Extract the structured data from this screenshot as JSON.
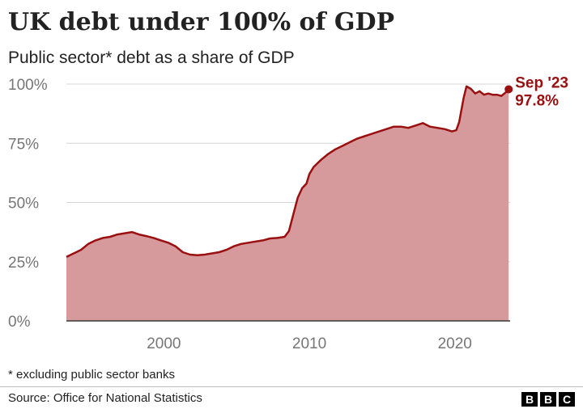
{
  "chart_data": {
    "type": "area",
    "title": "UK debt under 100% of GDP",
    "subtitle": "Public sector* debt as a share of GDP",
    "y_ticks": [
      "0%",
      "25%",
      "50%",
      "75%",
      "100%"
    ],
    "x_ticks": [
      "2000",
      "2010",
      "2020"
    ],
    "ylim": [
      0,
      100
    ],
    "xlim": [
      1993.3,
      2023.8
    ],
    "grid": true,
    "series": [
      {
        "x": [
          1993.3,
          1993.8,
          1994.3,
          1994.8,
          1995.3,
          1995.8,
          1996.3,
          1996.8,
          1997.3,
          1997.8,
          1998.3,
          1998.8,
          1999.3,
          1999.8,
          2000.3,
          2000.8,
          2001.3,
          2001.8,
          2002.3,
          2002.8,
          2003.3,
          2003.8,
          2004.3,
          2004.8,
          2005.3,
          2005.8,
          2006.3,
          2006.8,
          2007.3,
          2007.8,
          2008.3,
          2008.6,
          2008.9,
          2009.2,
          2009.5,
          2009.8,
          2010.0,
          2010.3,
          2010.8,
          2011.3,
          2011.8,
          2012.3,
          2012.8,
          2013.3,
          2013.8,
          2014.3,
          2014.8,
          2015.3,
          2015.8,
          2016.3,
          2016.8,
          2017.3,
          2017.8,
          2018.3,
          2018.8,
          2019.3,
          2019.8,
          2020.1,
          2020.3,
          2020.6,
          2020.8,
          2021.1,
          2021.4,
          2021.7,
          2022.0,
          2022.3,
          2022.6,
          2022.9,
          2023.2,
          2023.5,
          2023.7
        ],
        "y": [
          27,
          28.5,
          30,
          32.5,
          34,
          35,
          35.5,
          36.5,
          37,
          37.5,
          36.5,
          35.8,
          35,
          34,
          33,
          31.5,
          29,
          28,
          27.7,
          28,
          28.5,
          29,
          30,
          31.5,
          32.5,
          33,
          33.5,
          34,
          34.8,
          35,
          35.5,
          38,
          45,
          52,
          56,
          58,
          62,
          65,
          68,
          70.5,
          72.5,
          74,
          75.5,
          77,
          78,
          79,
          80,
          81,
          82,
          82,
          81.5,
          82.5,
          83.5,
          82,
          81.5,
          81,
          80,
          80.5,
          84,
          94,
          99,
          98,
          96,
          97,
          95.5,
          96,
          95.5,
          95.5,
          95,
          96.5,
          97.8
        ]
      }
    ],
    "annotation": {
      "label": "Sep '23",
      "value_label": "97.8%",
      "x": 2023.7,
      "y": 97.8
    },
    "colors": {
      "fill": "#d79a9c",
      "line": "#9a0f0f",
      "grid": "#d6d6d6",
      "axis": "#3a3a3a"
    }
  },
  "footnote": "* excluding public sector banks",
  "source": "Source: Office for National Statistics",
  "brand": [
    "B",
    "B",
    "C"
  ]
}
